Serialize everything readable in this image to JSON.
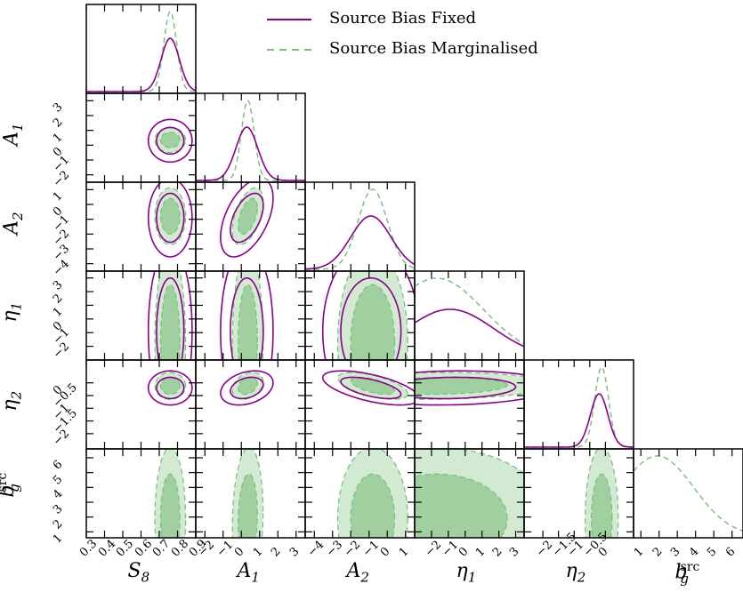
{
  "chart_data": {
    "type": "corner",
    "parameters": [
      {
        "name": "S8",
        "sym": "S",
        "sub": "8",
        "sup": "",
        "range": [
          0.3,
          0.9
        ],
        "ticks": [
          "0.3",
          "0.4",
          "0.5",
          "0.6",
          "0.7",
          "0.8",
          "0.9"
        ]
      },
      {
        "name": "A1",
        "sym": "A",
        "sub": "1",
        "sup": "",
        "range": [
          -2.5,
          3.5
        ],
        "ticks": [
          "−2",
          "−1",
          "0",
          "1",
          "2",
          "3"
        ]
      },
      {
        "name": "A2",
        "sym": "A",
        "sub": "2",
        "sup": "",
        "range": [
          -4.5,
          1.5
        ],
        "ticks": [
          "−4",
          "−3",
          "−2",
          "−1",
          "0",
          "1"
        ]
      },
      {
        "name": "eta1",
        "sym": "η",
        "sub": "1",
        "sup": "",
        "range": [
          -3,
          3.5
        ],
        "ticks": [
          "−2",
          "−1",
          "0",
          "1",
          "2",
          "3"
        ]
      },
      {
        "name": "eta2",
        "sym": "η",
        "sub": "2",
        "sup": "",
        "range": [
          -2.6,
          0.9
        ],
        "ticks": [
          "−2",
          "−1.5",
          "−1",
          "−0.5",
          "0"
        ]
      },
      {
        "name": "b_g_src",
        "sym": "b",
        "sub": "g",
        "sup": "src",
        "range": [
          0.6,
          6.6
        ],
        "ticks": [
          "1",
          "2",
          "3",
          "4",
          "5",
          "6"
        ]
      }
    ],
    "series": [
      {
        "name": "Source Bias Fixed",
        "color": "#8b008b",
        "style": "solid",
        "filled": false
      },
      {
        "name": "Source Bias Marginalised",
        "color": "#7fbf7f",
        "style": "dashed",
        "filled": true
      }
    ],
    "fixed": {
      "mean": [
        0.76,
        0.3,
        -0.9,
        -0.9,
        -0.2
      ],
      "sigma": [
        0.05,
        0.6,
        1.1,
        2.6,
        0.28
      ],
      "corr": [
        [
          1,
          0,
          0,
          0,
          0
        ],
        [
          0,
          1,
          0.5,
          0,
          0.3
        ],
        [
          0,
          0.5,
          1,
          0,
          -0.6
        ],
        [
          0,
          0,
          0,
          1,
          0.1
        ],
        [
          0,
          0.3,
          -0.6,
          0.1,
          1
        ]
      ]
    },
    "marginalised": {
      "mean": [
        0.76,
        0.35,
        -0.8,
        -1.7,
        -0.12,
        1.9
      ],
      "sigma": [
        0.035,
        0.35,
        0.8,
        2.8,
        0.22,
        2.0
      ],
      "corr": [
        [
          1,
          0,
          0,
          0,
          0,
          0
        ],
        [
          0,
          1,
          0.5,
          0,
          0.3,
          0.1
        ],
        [
          0,
          0.5,
          1,
          0,
          -0.6,
          0
        ],
        [
          0,
          0,
          0,
          1,
          0.1,
          0
        ],
        [
          0,
          0.3,
          -0.6,
          0.1,
          1,
          0
        ],
        [
          0,
          0.1,
          0,
          0,
          0,
          1
        ]
      ]
    },
    "legend_position": "top-right"
  }
}
